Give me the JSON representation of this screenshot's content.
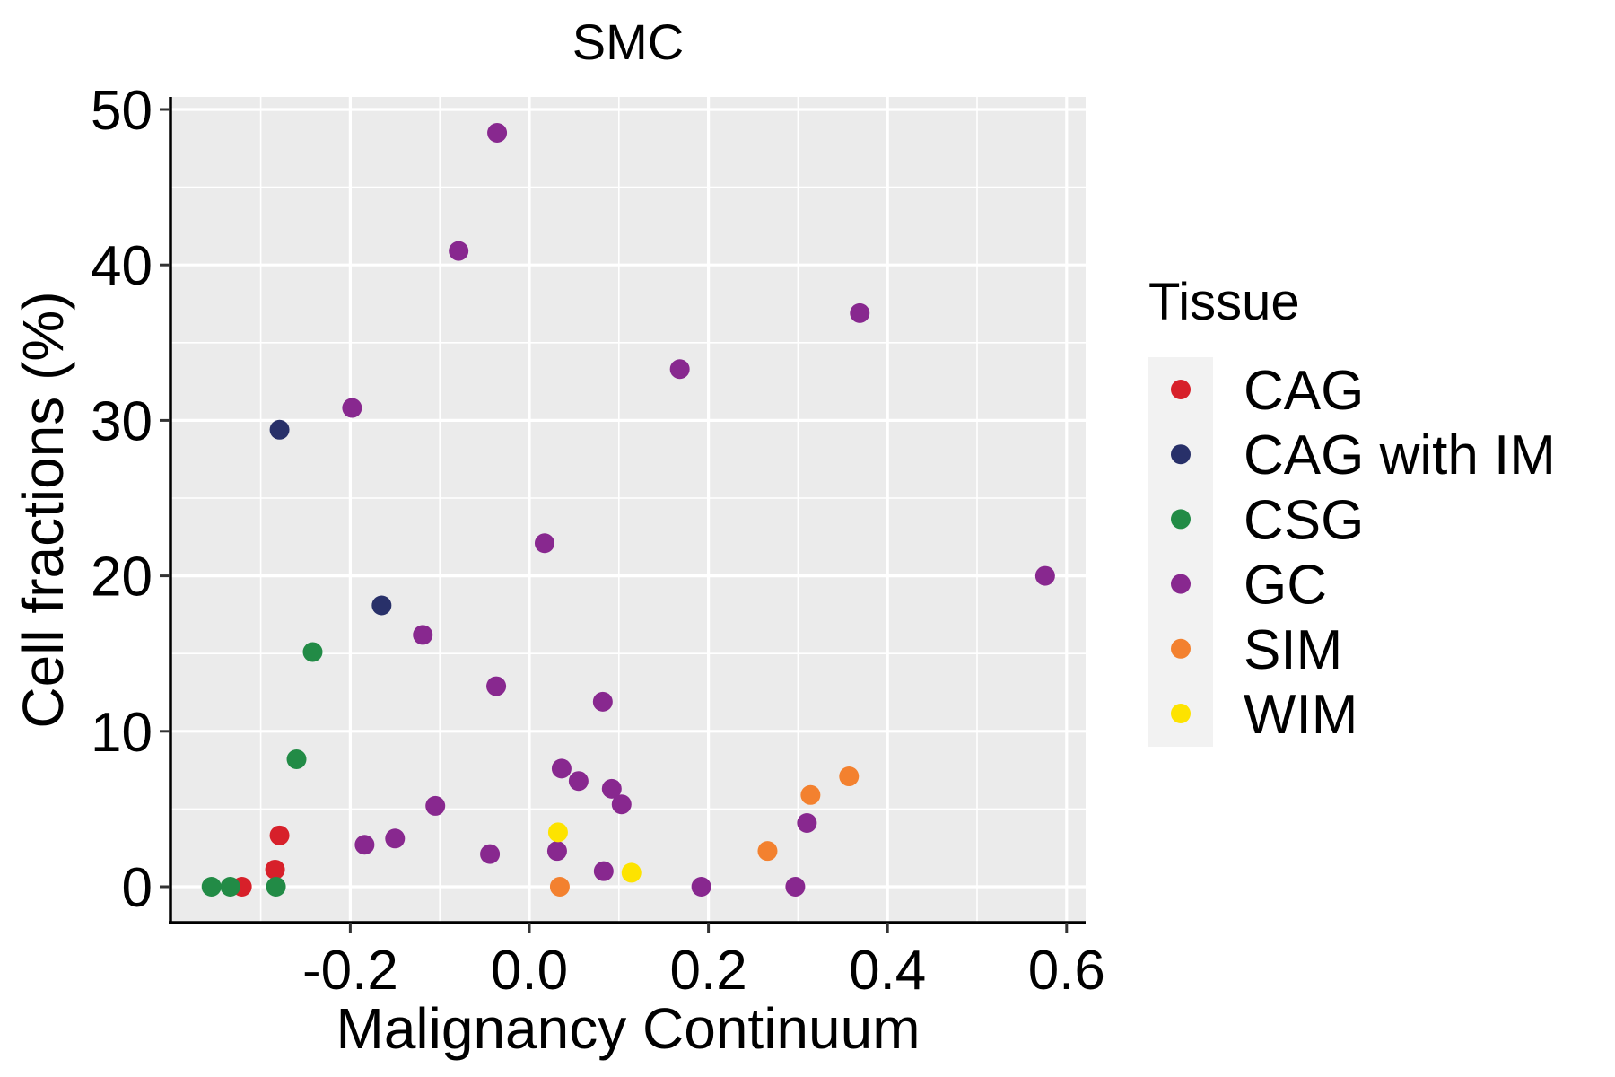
{
  "chart_data": {
    "type": "scatter",
    "title": "SMC",
    "xlabel": "Malignancy Continuum",
    "ylabel": "Cell fractions (%)",
    "xlim": [
      -0.4,
      0.62
    ],
    "ylim": [
      -2.5,
      51.5
    ],
    "x_ticks": [
      -0.2,
      0.0,
      0.2,
      0.4,
      0.6
    ],
    "x_tick_labels": [
      "-0.2",
      "0.0",
      "0.2",
      "0.4",
      "0.6"
    ],
    "y_ticks": [
      0,
      10,
      20,
      30,
      40,
      50
    ],
    "y_tick_labels": [
      "0",
      "10",
      "20",
      "30",
      "40",
      "50"
    ],
    "grid": true,
    "legend": {
      "title": "Tissue",
      "position": "right",
      "entries": [
        {
          "name": "CAG",
          "color": "#D7202A"
        },
        {
          "name": "CAG with IM",
          "color": "#283069"
        },
        {
          "name": "CSG",
          "color": "#228B46"
        },
        {
          "name": "GC",
          "color": "#88288F"
        },
        {
          "name": "SIM",
          "color": "#F3812F"
        },
        {
          "name": "WIM",
          "color": "#FDE300"
        }
      ]
    },
    "series": [
      {
        "name": "CAG",
        "points": [
          [
            -0.279,
            3.3
          ],
          [
            -0.284,
            1.1
          ],
          [
            -0.321,
            0.0
          ]
        ]
      },
      {
        "name": "CAG with IM",
        "points": [
          [
            -0.279,
            29.4
          ],
          [
            -0.165,
            18.1
          ]
        ]
      },
      {
        "name": "CSG",
        "points": [
          [
            -0.242,
            15.1
          ],
          [
            -0.26,
            8.2
          ],
          [
            -0.355,
            0.0
          ],
          [
            -0.334,
            0.0
          ],
          [
            -0.283,
            0.0
          ]
        ]
      },
      {
        "name": "GC",
        "points": [
          [
            -0.036,
            48.5
          ],
          [
            -0.079,
            40.9
          ],
          [
            0.369,
            36.9
          ],
          [
            0.168,
            33.3
          ],
          [
            -0.198,
            30.8
          ],
          [
            0.017,
            22.1
          ],
          [
            0.576,
            20.0
          ],
          [
            -0.119,
            16.2
          ],
          [
            -0.037,
            12.9
          ],
          [
            0.082,
            11.9
          ],
          [
            0.036,
            7.6
          ],
          [
            0.055,
            6.8
          ],
          [
            0.092,
            6.3
          ],
          [
            0.103,
            5.3
          ],
          [
            -0.105,
            5.2
          ],
          [
            0.31,
            4.1
          ],
          [
            -0.15,
            3.1
          ],
          [
            -0.184,
            2.7
          ],
          [
            0.031,
            2.3
          ],
          [
            -0.044,
            2.1
          ],
          [
            0.083,
            1.0
          ],
          [
            0.192,
            0.0
          ],
          [
            0.297,
            0.0
          ]
        ]
      },
      {
        "name": "SIM",
        "points": [
          [
            0.357,
            7.1
          ],
          [
            0.314,
            5.9
          ],
          [
            0.266,
            2.3
          ],
          [
            0.034,
            0.0
          ]
        ]
      },
      {
        "name": "WIM",
        "points": [
          [
            0.032,
            3.5
          ],
          [
            0.114,
            0.9
          ]
        ]
      }
    ]
  }
}
